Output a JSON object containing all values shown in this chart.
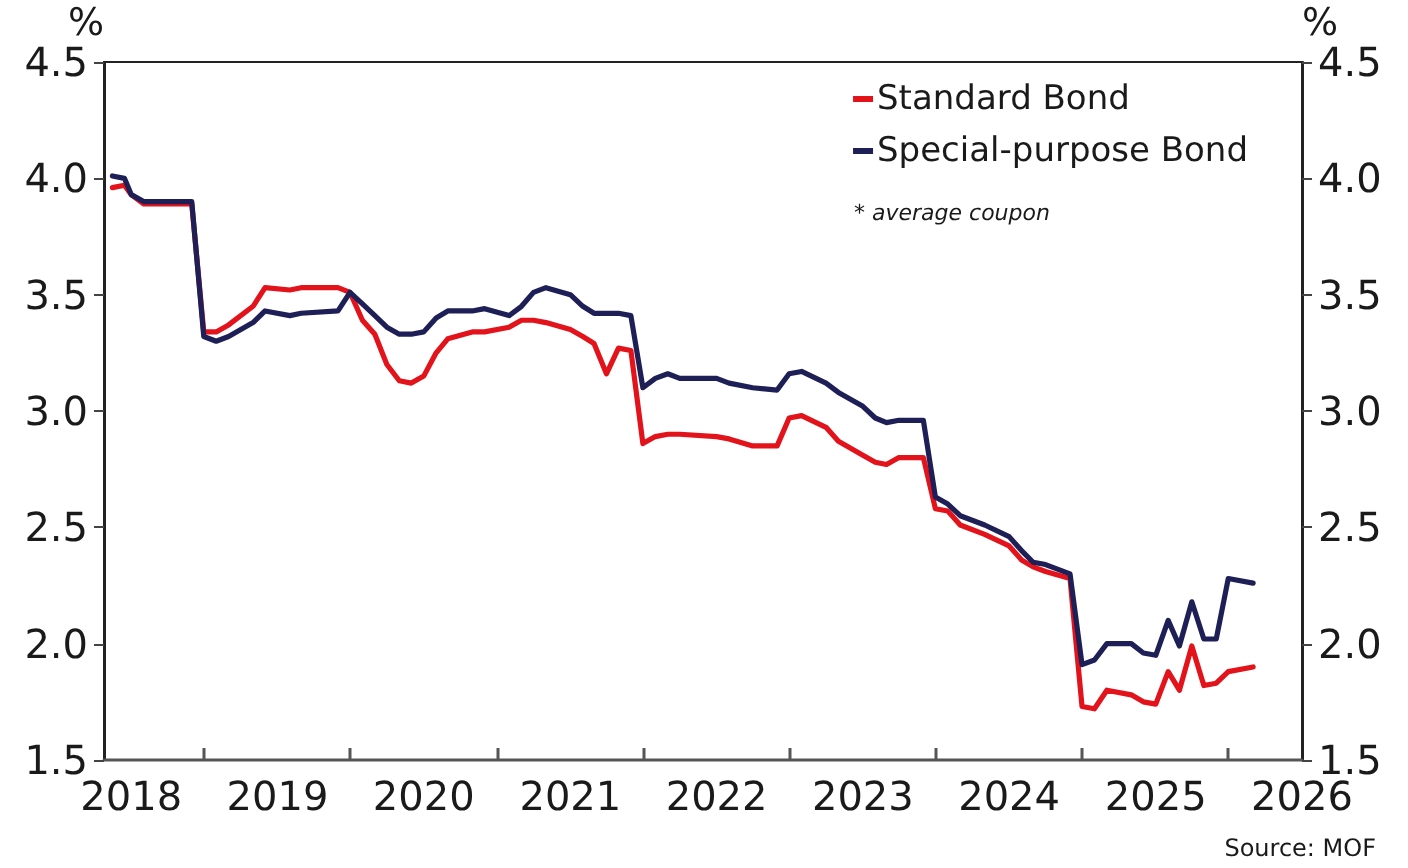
{
  "chart_data": {
    "type": "line",
    "ylabel": "%",
    "y2label": "%",
    "annotations": [
      "* average coupon",
      "Source: MOF"
    ],
    "x": [
      "2017-11-15",
      "2017-12-15",
      "2018-01",
      "2018-02",
      "2018-06",
      "2018-07",
      "2018-08",
      "2018-09",
      "2018-11",
      "2018-12",
      "2019-02",
      "2019-03",
      "2019-06",
      "2019-07",
      "2019-08",
      "2019-09",
      "2019-10",
      "2019-11",
      "2019-12",
      "2020-01",
      "2020-02",
      "2020-03",
      "2020-05",
      "2020-06",
      "2020-08",
      "2020-09",
      "2020-10",
      "2020-11",
      "2021-01",
      "2021-02",
      "2021-03",
      "2021-04",
      "2021-05",
      "2021-06",
      "2021-07",
      "2021-08",
      "2021-09",
      "2021-10",
      "2022-01",
      "2022-02",
      "2022-04",
      "2022-06",
      "2022-07",
      "2022-08",
      "2022-10",
      "2022-11",
      "2023-01",
      "2023-02",
      "2023-03",
      "2023-04",
      "2023-06",
      "2023-07",
      "2023-08",
      "2023-09",
      "2023-11",
      "2024-01",
      "2024-02",
      "2024-03",
      "2024-04",
      "2024-06",
      "2024-07",
      "2024-08",
      "2024-09",
      "2024-11",
      "2024-12",
      "2025-01",
      "2025-02",
      "2025-03",
      "2025-04",
      "2025-05",
      "2025-06",
      "2025-07",
      "2025-09"
    ],
    "series": [
      {
        "name": "Standard Bond",
        "color": "#e3131b",
        "values": [
          3.96,
          3.97,
          3.93,
          3.89,
          3.89,
          3.34,
          3.34,
          3.37,
          3.45,
          3.53,
          3.52,
          3.53,
          3.53,
          3.51,
          3.39,
          3.33,
          3.2,
          3.13,
          3.12,
          3.15,
          3.25,
          3.31,
          3.34,
          3.34,
          3.36,
          3.39,
          3.39,
          3.38,
          3.35,
          3.32,
          3.29,
          3.16,
          3.27,
          3.26,
          2.86,
          2.89,
          2.9,
          2.9,
          2.89,
          2.88,
          2.85,
          2.85,
          2.97,
          2.98,
          2.93,
          2.87,
          2.81,
          2.78,
          2.77,
          2.8,
          2.8,
          2.58,
          2.57,
          2.51,
          2.47,
          2.42,
          2.36,
          2.33,
          2.31,
          2.28,
          1.73,
          1.72,
          1.8,
          1.78,
          1.75,
          1.74,
          1.88,
          1.8,
          1.99,
          1.82,
          1.83,
          1.88,
          1.9
        ]
      },
      {
        "name": "Special-purpose Bond",
        "color": "#1e1f56",
        "values": [
          4.01,
          4.0,
          3.93,
          3.9,
          3.9,
          3.32,
          3.3,
          3.32,
          3.38,
          3.43,
          3.41,
          3.42,
          3.43,
          3.51,
          3.46,
          3.41,
          3.36,
          3.33,
          3.33,
          3.34,
          3.4,
          3.43,
          3.43,
          3.44,
          3.41,
          3.45,
          3.51,
          3.53,
          3.5,
          3.45,
          3.42,
          3.42,
          3.42,
          3.41,
          3.1,
          3.14,
          3.16,
          3.14,
          3.14,
          3.12,
          3.1,
          3.09,
          3.16,
          3.17,
          3.12,
          3.08,
          3.02,
          2.97,
          2.95,
          2.96,
          2.96,
          2.63,
          2.6,
          2.55,
          2.51,
          2.46,
          2.4,
          2.35,
          2.34,
          2.3,
          1.91,
          1.93,
          2.0,
          2.0,
          1.96,
          1.95,
          2.1,
          1.99,
          2.18,
          2.02,
          2.02,
          2.28,
          2.26
        ]
      }
    ],
    "xlim": [
      "2017-10-25",
      "2026-01-01"
    ],
    "xticks": [
      "2018",
      {
        "value": "2018-07",
        "label": null
      },
      "2019",
      {
        "value": "2019-07",
        "label": null
      },
      "2020",
      {
        "value": "2020-07",
        "label": null
      },
      "2021",
      {
        "value": "2021-07",
        "label": null
      },
      "2022",
      {
        "value": "2022-07",
        "label": null
      },
      "2023",
      {
        "value": "2023-07",
        "label": null
      },
      "2024",
      {
        "value": "2024-07",
        "label": null
      },
      "2025",
      {
        "value": "2025-07",
        "label": null
      },
      "2026"
    ],
    "ylim": [
      1.5,
      4.5
    ],
    "yticks": [
      1.5,
      {
        "value": 2,
        "label": "2.0"
      },
      2.5,
      {
        "value": 3,
        "label": "3.0"
      },
      3.5,
      {
        "value": 4,
        "label": "4.0"
      },
      4.5
    ],
    "y2lim": [
      1.5,
      4.5
    ],
    "y2ticks": [
      1.5,
      {
        "value": 2,
        "label": "2.0"
      },
      2.5,
      {
        "value": 3,
        "label": "3.0"
      },
      3.5,
      {
        "value": 4,
        "label": "4.0"
      },
      4.5
    ],
    "grid": false,
    "legend": "top right",
    "marker": "none",
    "line_style": "solid"
  }
}
